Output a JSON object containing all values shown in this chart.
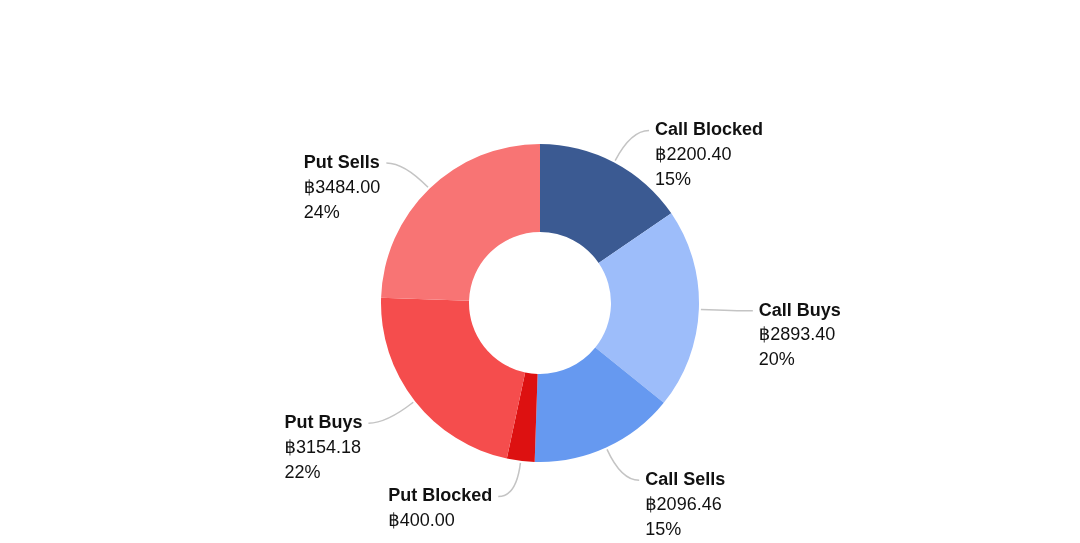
{
  "chart_data": {
    "type": "donut",
    "categories": [
      "Call Blocked",
      "Call Buys",
      "Call Sells",
      "Put Blocked",
      "Put Buys",
      "Put Sells"
    ],
    "values": [
      2200.4,
      2893.4,
      2096.46,
      400.0,
      3154.18,
      3484.0
    ],
    "colors": [
      "#3b5a92",
      "#9dbdfa",
      "#6699f0",
      "#dd1111",
      "#f54d4d",
      "#f87474"
    ],
    "value_labels": [
      "฿2200.40\n15%",
      "฿2893.40\n20%",
      "฿2096.46\n15%",
      "฿400.00",
      "฿3154.18\n22%",
      "฿3484.00\n24%"
    ]
  }
}
